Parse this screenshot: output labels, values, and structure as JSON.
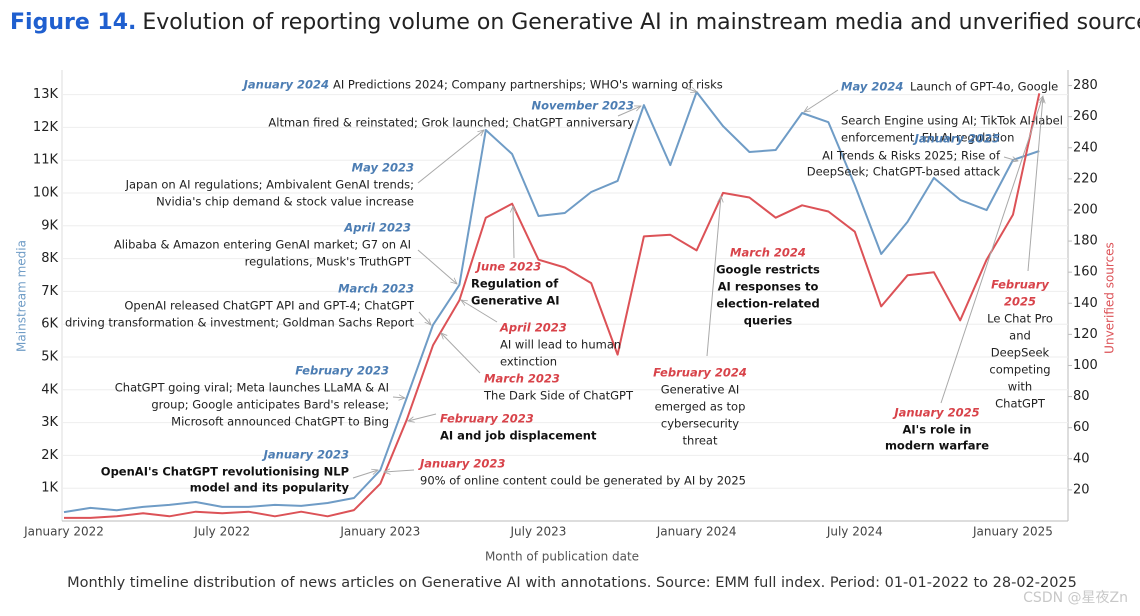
{
  "chart_data": {
    "type": "line",
    "figure_label": "Figure 14.",
    "title": "Evolution of reporting volume on Generative AI in mainstream media and unverified sources.",
    "caption": "Monthly timeline distribution of news articles on Generative AI with annotations. Source: EMM full index. Period: 01-01-2022 to 28-02-2025",
    "watermark": "CSDN @星夜Zn",
    "xlabel": "Month of publication date",
    "ylabel": "Mainstream media",
    "y2label": "Unverified sources",
    "categories": [
      "January 2022",
      null,
      null,
      null,
      null,
      null,
      "July 2022",
      null,
      null,
      null,
      null,
      null,
      "January 2023",
      null,
      null,
      null,
      null,
      null,
      "July 2023",
      null,
      null,
      null,
      null,
      null,
      "January 2024",
      null,
      null,
      null,
      null,
      null,
      "July 2024",
      null,
      null,
      null,
      null,
      null,
      "January 2025",
      null
    ],
    "ylim": [
      0,
      13750
    ],
    "yticks": [
      {
        "value": 1000,
        "label": "1K"
      },
      {
        "value": 2000,
        "label": "2K"
      },
      {
        "value": 3000,
        "label": "3K"
      },
      {
        "value": 4000,
        "label": "4K"
      },
      {
        "value": 5000,
        "label": "5K"
      },
      {
        "value": 6000,
        "label": "6K"
      },
      {
        "value": 7000,
        "label": "7K"
      },
      {
        "value": 8000,
        "label": "8K"
      },
      {
        "value": 9000,
        "label": "9K"
      },
      {
        "value": 10000,
        "label": "10K"
      },
      {
        "value": 11000,
        "label": "11K"
      },
      {
        "value": 12000,
        "label": "12K"
      },
      {
        "value": 13000,
        "label": "13K"
      }
    ],
    "y2lim": [
      0,
      290
    ],
    "y2ticks": [
      20,
      40,
      60,
      80,
      100,
      120,
      140,
      160,
      180,
      200,
      220,
      240,
      260,
      280
    ],
    "grid": true,
    "series": [
      {
        "name": "Mainstream media",
        "color": "#6f9cc6",
        "date_color": "#4c7db3",
        "values": [
          270,
          400,
          330,
          430,
          490,
          580,
          430,
          430,
          490,
          460,
          550,
          700,
          1550,
          3750,
          5980,
          7200,
          11920,
          11190,
          9300,
          9390,
          10030,
          10370,
          12680,
          10850,
          13080,
          12040,
          11250,
          11310,
          12440,
          12160,
          10240,
          8140,
          9120,
          10460,
          9790,
          9480,
          11010,
          11280
        ]
      },
      {
        "name": "Unverified sources",
        "color": "#dc5257",
        "date_color": "#d8434a",
        "axis": "y2",
        "values": [
          2,
          2,
          3,
          5,
          3,
          6,
          5,
          6,
          3,
          6,
          3,
          7,
          24,
          65,
          113,
          142,
          195,
          204,
          168,
          163,
          153,
          107,
          183,
          184,
          174,
          211,
          208,
          195,
          203,
          199,
          186,
          138,
          158,
          160,
          129,
          168,
          197,
          275
        ]
      }
    ],
    "annotations": [
      {
        "series": 0,
        "date": "January 2024",
        "lines": [
          "AI Predictions 2024; Company partnerships; WHO's warning of risks"
        ]
      },
      {
        "series": 0,
        "date": "November 2023",
        "lines": [
          "Altman fired & reinstated; Grok launched; ChatGPT anniversary"
        ]
      },
      {
        "series": 0,
        "date": "May 2023",
        "lines": [
          "Japan on AI regulations; Ambivalent GenAI trends;",
          "Nvidia's chip demand & stock value increase"
        ]
      },
      {
        "series": 0,
        "date": "April 2023",
        "lines": [
          "Alibaba & Amazon entering GenAI market; G7 on AI",
          "regulations, Musk's TruthGPT"
        ]
      },
      {
        "series": 0,
        "date": "March 2023",
        "lines": [
          "OpenAI released ChatGPT API and GPT-4; ChatGPT",
          "driving transformation & investment; Goldman Sachs Report"
        ]
      },
      {
        "series": 0,
        "date": "February 2023",
        "lines": [
          "ChatGPT going viral; Meta launches LLaMA & AI",
          "group; Google anticipates Bard's release;",
          "Microsoft announced ChatGPT to Bing"
        ]
      },
      {
        "series": 0,
        "date": "January 2023",
        "bold": true,
        "lines": [
          "OpenAI's ChatGPT revolutionising NLP",
          "model and its popularity"
        ]
      },
      {
        "series": 0,
        "date": "May 2024",
        "lines": [
          "Launch of GPT-4o, Google",
          "Search Engine using AI; TikTok AI-label",
          "enforcement, EU AI regulation"
        ]
      },
      {
        "series": 0,
        "date": "January 2025",
        "lines": [
          "AI Trends & Risks 2025; Rise of",
          "DeepSeek; ChatGPT-based attack"
        ]
      },
      {
        "series": 1,
        "date": "June 2023",
        "bold": true,
        "lines": [
          "Regulation of",
          "Generative AI"
        ]
      },
      {
        "series": 1,
        "date": "April 2023",
        "lines": [
          "AI will lead to human",
          "extinction"
        ]
      },
      {
        "series": 1,
        "date": "March 2023",
        "lines": [
          "The Dark Side of ChatGPT"
        ]
      },
      {
        "series": 1,
        "date": "February 2023",
        "bold": true,
        "lines": [
          "AI and job displacement"
        ]
      },
      {
        "series": 1,
        "date": "January 2023",
        "lines": [
          "90% of online content could be generated by AI by 2025"
        ]
      },
      {
        "series": 1,
        "date": "March 2024",
        "bold": true,
        "lines": [
          "Google restricts",
          "AI responses to",
          "election-related",
          "queries"
        ]
      },
      {
        "series": 1,
        "date": "February 2024",
        "lines": [
          "Generative AI",
          "emerged as top",
          "cybersecurity",
          "threat"
        ]
      },
      {
        "series": 1,
        "date": "January 2025",
        "bold": true,
        "lines": [
          "AI's role in",
          "modern warfare"
        ]
      },
      {
        "series": 1,
        "date": [
          "February",
          "2025"
        ],
        "lines": [
          "Le Chat Pro",
          "and",
          "DeepSeek",
          "competing",
          "with",
          "ChatGPT"
        ]
      }
    ]
  }
}
